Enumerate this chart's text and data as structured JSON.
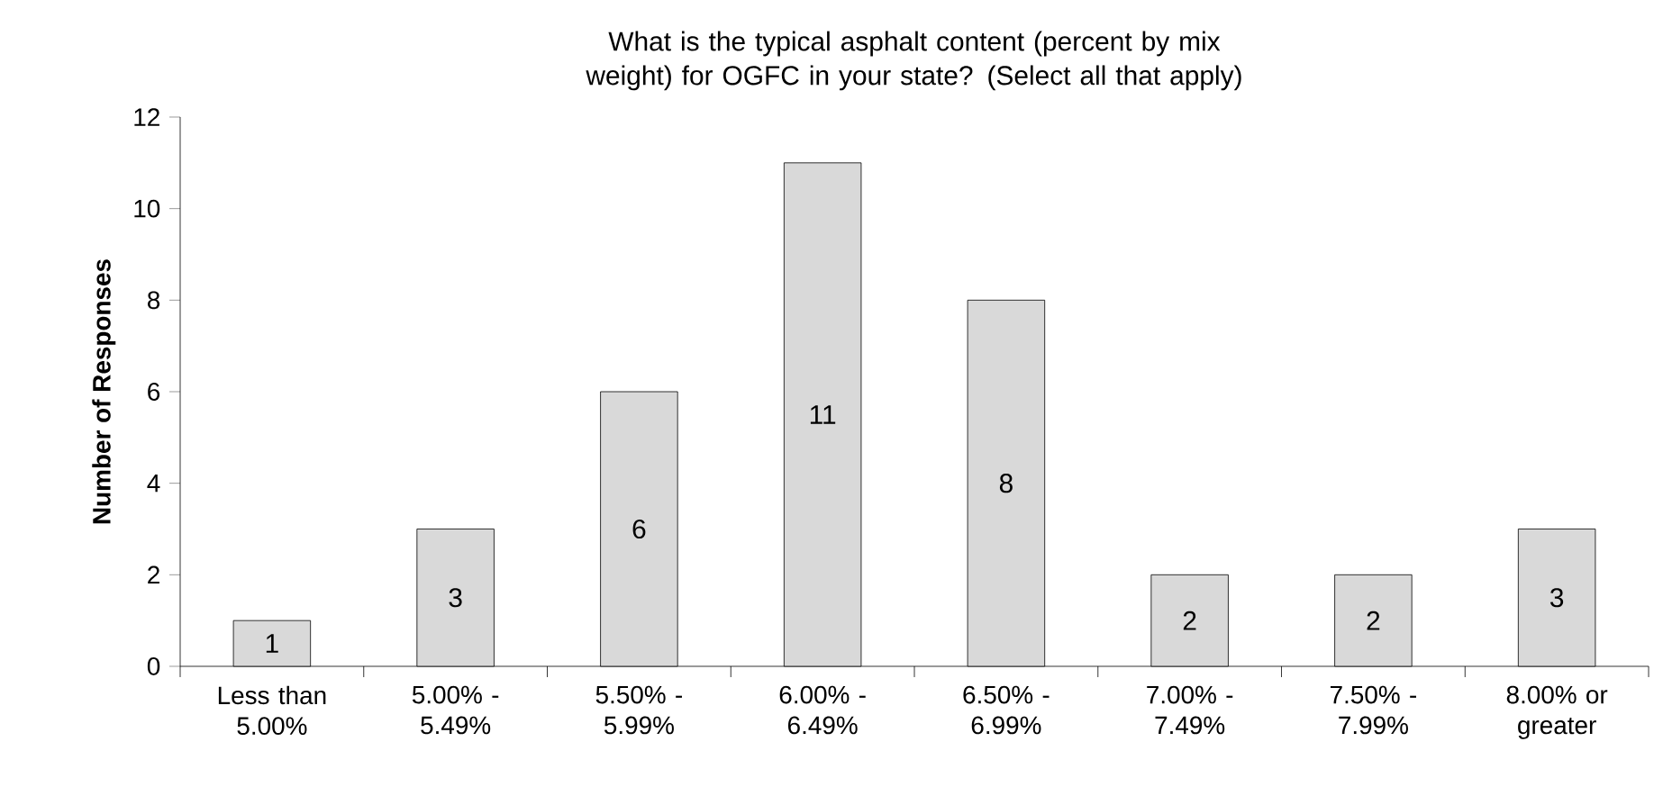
{
  "chart_data": {
    "type": "bar",
    "title": "What is the typical asphalt content (percent by mix weight) for OGFC in your state? (Select all that apply)",
    "ylabel": "Number of Responses",
    "categories": [
      "Less than 5.00%",
      "5.00% - 5.49%",
      "5.50% - 5.99%",
      "6.00% - 6.49%",
      "6.50% - 6.99%",
      "7.00% - 7.49%",
      "7.50% - 7.99%",
      "8.00% or greater"
    ],
    "values": [
      1,
      3,
      6,
      11,
      8,
      2,
      2,
      3
    ],
    "color": "#d9d9d9",
    "ylim": [
      0,
      12
    ],
    "yticks": [
      0,
      2,
      4,
      6,
      8,
      10,
      12
    ],
    "data_labels": true,
    "grid": false
  }
}
